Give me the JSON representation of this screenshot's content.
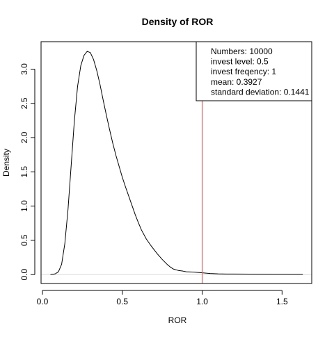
{
  "chart_data": {
    "type": "line",
    "title": "Density of ROR",
    "xlabel": "ROR",
    "ylabel": "Density",
    "xlim": [
      -0.0087,
      1.6858
    ],
    "ylim": [
      -0.1308,
      3.4009
    ],
    "x_ticks": [
      {
        "value": 0.0,
        "label": "0.0"
      },
      {
        "value": 0.5,
        "label": "0.5"
      },
      {
        "value": 1.0,
        "label": "1.0"
      },
      {
        "value": 1.5,
        "label": "1.5"
      }
    ],
    "y_ticks": [
      {
        "value": 0.0,
        "label": "0.0"
      },
      {
        "value": 0.5,
        "label": "0.5"
      },
      {
        "value": 1.0,
        "label": "1.0"
      },
      {
        "value": 1.5,
        "label": "1.5"
      },
      {
        "value": 2.0,
        "label": "2.0"
      },
      {
        "value": 2.5,
        "label": "2.5"
      },
      {
        "value": 3.0,
        "label": "3.0"
      }
    ],
    "grid": false,
    "legend_position": "top-right",
    "legend_lines": [
      "Numbers: 10000",
      "invest level: 0.5",
      "invest freqency: 1",
      "mean: 0.3927",
      "standard deviation: 0.1441"
    ],
    "vline": {
      "x": 1.0,
      "color": "#e06666"
    },
    "baseline": {
      "y": 0.0,
      "color": "#d9d9d9"
    },
    "series": [
      {
        "color": "#000000",
        "x": [
          0.05,
          0.08,
          0.1,
          0.12,
          0.14,
          0.16,
          0.18,
          0.2,
          0.22,
          0.24,
          0.26,
          0.28,
          0.3,
          0.32,
          0.34,
          0.36,
          0.38,
          0.4,
          0.42,
          0.44,
          0.46,
          0.48,
          0.5,
          0.52,
          0.55,
          0.58,
          0.6,
          0.62,
          0.65,
          0.68,
          0.7,
          0.72,
          0.75,
          0.78,
          0.8,
          0.82,
          0.85,
          0.88,
          0.9,
          0.95,
          1.0,
          1.05,
          1.1,
          1.15,
          1.2,
          1.3,
          1.4,
          1.5,
          1.63
        ],
        "y": [
          0.0,
          0.01,
          0.04,
          0.15,
          0.45,
          0.95,
          1.6,
          2.25,
          2.75,
          3.05,
          3.2,
          3.26,
          3.24,
          3.14,
          2.98,
          2.78,
          2.55,
          2.33,
          2.12,
          1.92,
          1.74,
          1.58,
          1.42,
          1.28,
          1.08,
          0.88,
          0.76,
          0.65,
          0.52,
          0.42,
          0.36,
          0.3,
          0.22,
          0.15,
          0.11,
          0.08,
          0.06,
          0.05,
          0.04,
          0.035,
          0.025,
          0.015,
          0.01,
          0.008,
          0.008,
          0.006,
          0.005,
          0.004,
          0.003
        ]
      }
    ]
  }
}
